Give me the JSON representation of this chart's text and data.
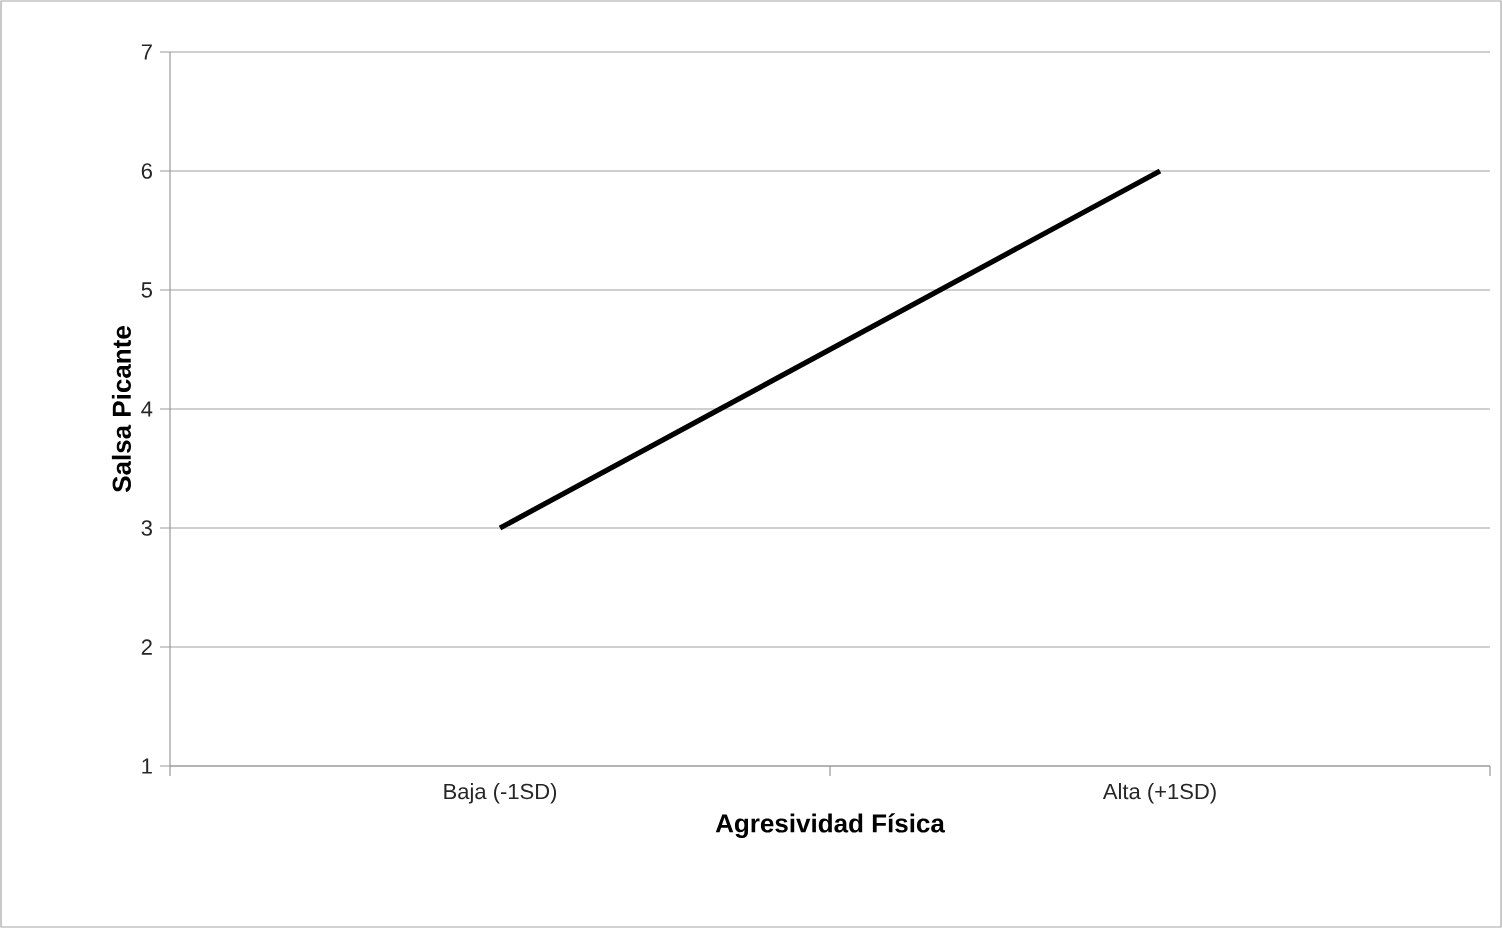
{
  "chart_data": {
    "type": "line",
    "xlabel": "Agresividad Física",
    "ylabel": "Salsa Picante",
    "categories": [
      "Baja (-1SD)",
      "Alta (+1SD)"
    ],
    "values": [
      3,
      6
    ],
    "color": "#000000",
    "ylim": [
      1,
      7
    ],
    "yticks": [
      1,
      2,
      3,
      4,
      5,
      6,
      7
    ],
    "grid": "y"
  }
}
